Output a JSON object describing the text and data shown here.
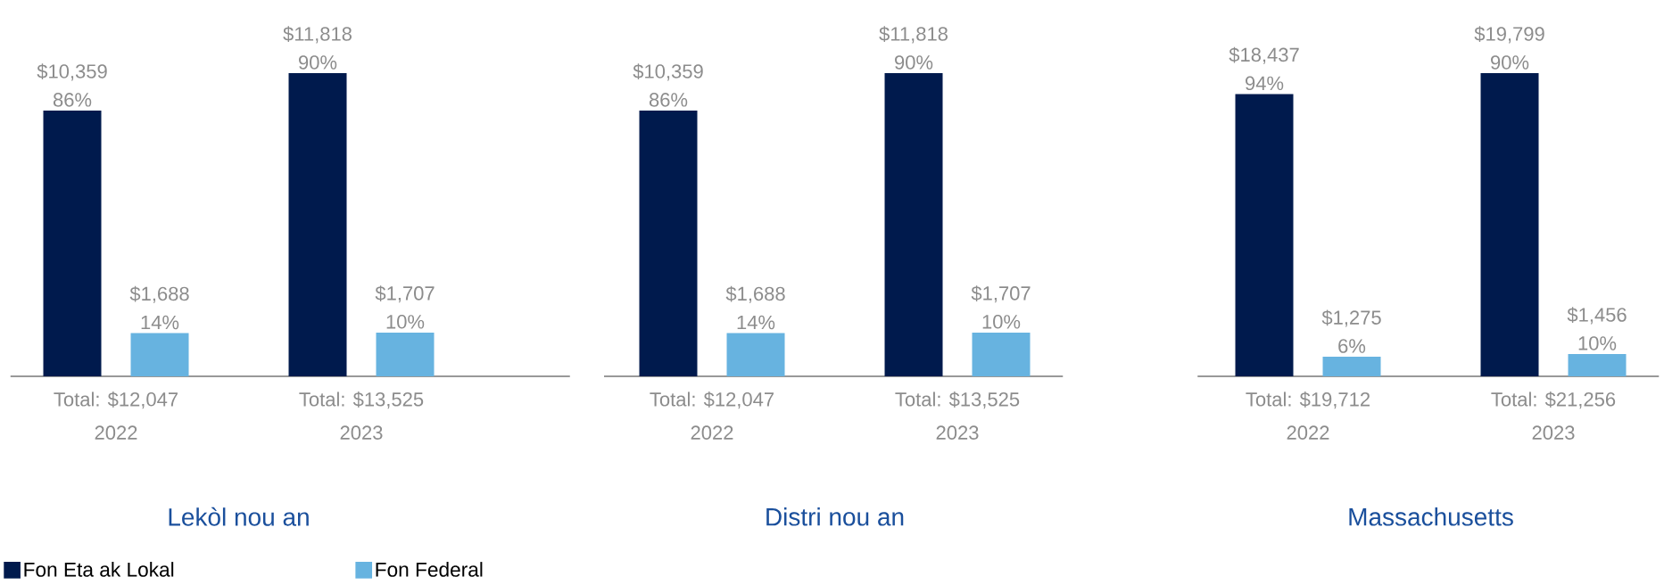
{
  "chart_data": [
    {
      "type": "bar",
      "title": "Lekòl nou an",
      "categories": [
        "2022",
        "2023"
      ],
      "legend": "bottom",
      "series": [
        {
          "name": "Fon Eta ak Lokal",
          "color": "#001a4d",
          "values": [
            10359,
            11818
          ],
          "value_labels": [
            "$10,359",
            "$11,818"
          ]
        },
        {
          "name": "Fon Federal",
          "color": "#67b3e0",
          "values": [
            1688,
            1707
          ],
          "value_labels": [
            "$1,688",
            "$1,707"
          ]
        }
      ],
      "totals": [
        "Total: $12,047",
        "Total: $13,525"
      ],
      "annotations": [
        "86%",
        "90%",
        "14%",
        "10%"
      ]
    },
    {
      "type": "bar",
      "title": "Distri nou an",
      "categories": [
        "2022",
        "2023"
      ],
      "series": [
        {
          "color": "#001a4d",
          "values": [
            10359,
            11818
          ],
          "value_labels": [
            "$10,359",
            "$11,818"
          ]
        },
        {
          "color": "#67b3e0",
          "values": [
            1688,
            1707
          ],
          "value_labels": [
            "$1,688",
            "$1,707"
          ]
        }
      ],
      "totals": [
        "Total: $12,047",
        "Total: $13,525"
      ],
      "annotations": [
        "86%",
        "90%",
        "14%",
        "10%"
      ]
    },
    {
      "type": "bar",
      "title": "Massachusetts",
      "categories": [
        "2022",
        "2023"
      ],
      "series": [
        {
          "color": "#001a4d",
          "values": [
            18437,
            19799
          ],
          "value_labels": [
            "$18,437",
            "$19,799"
          ]
        },
        {
          "color": "#67b3e0",
          "values": [
            1275,
            1456
          ],
          "value_labels": [
            "$1,275",
            "$1,456"
          ]
        }
      ],
      "totals": [
        "Total: $19,712",
        "Total: $21,256"
      ],
      "annotations": [
        "94%",
        "90%",
        "6%",
        "10%"
      ]
    }
  ]
}
